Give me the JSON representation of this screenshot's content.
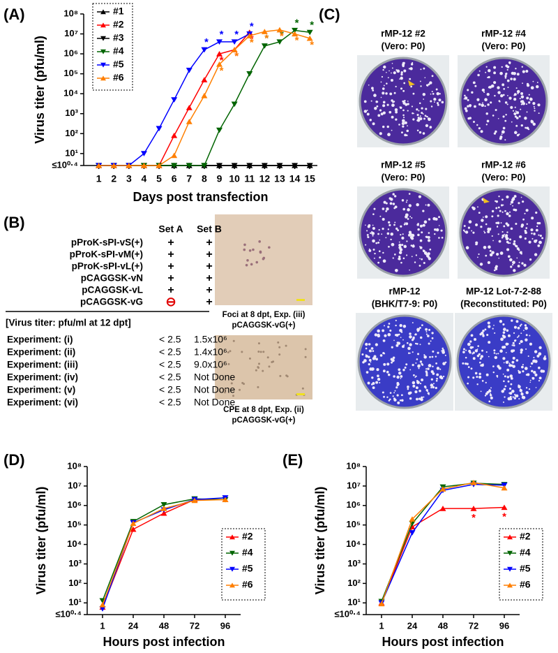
{
  "chart_data": [
    {
      "type": "line",
      "label": "(A)",
      "x_label": "Days post transfection",
      "y_label": "Virus titer (pfu/ml)",
      "log_y": true,
      "legend": "upper left",
      "annotation_text": "*",
      "x": [
        1,
        2,
        3,
        4,
        5,
        6,
        7,
        8,
        9,
        10,
        11,
        12,
        13,
        14,
        15
      ],
      "xlim": [
        0,
        15.5
      ],
      "xticks": [
        1,
        2,
        3,
        4,
        5,
        6,
        7,
        8,
        9,
        10,
        11,
        12,
        13,
        14,
        15
      ],
      "ylim": [
        2.5119,
        100000000
      ],
      "yticks": [
        {
          "value": 2.5119,
          "label": "≤10⁰·⁴"
        },
        {
          "value": 10,
          "label": "10¹"
        },
        {
          "value": 100,
          "label": "10²"
        },
        {
          "value": 1000,
          "label": "10³"
        },
        {
          "value": 10000,
          "label": "10⁴"
        },
        {
          "value": 100000,
          "label": "10⁵"
        },
        {
          "value": 1000000,
          "label": "10⁶"
        },
        {
          "value": 10000000,
          "label": "10⁷"
        },
        {
          "value": 100000000,
          "label": "10⁸"
        }
      ],
      "series": [
        {
          "name": "#1",
          "color": "#000000",
          "marker": "up",
          "values": [
            2.5119,
            2.5119,
            2.5119,
            2.5119,
            2.5119,
            2.5119,
            2.5119,
            2.5119,
            2.5119,
            2.5119,
            2.5119,
            2.5119,
            2.5119,
            2.5119,
            2.5119
          ],
          "asterisk_x": []
        },
        {
          "name": "#2",
          "color": "#ff0000",
          "marker": "up",
          "values": [
            2.5119,
            2.5119,
            2.5119,
            2.5119,
            2.5119,
            80,
            2000,
            50000,
            1000000,
            1600000,
            12000000,
            null,
            null,
            null,
            null
          ],
          "asterisk_x": [
            9,
            10,
            11
          ]
        },
        {
          "name": "#3",
          "color": "#000000",
          "marker": "down",
          "values": [
            2.5119,
            2.5119,
            2.5119,
            2.5119,
            2.5119,
            2.5119,
            2.5119,
            2.5119,
            2.5119,
            2.5119,
            2.5119,
            2.5119,
            2.5119,
            2.5119,
            2.5119
          ],
          "asterisk_x": []
        },
        {
          "name": "#4",
          "color": "#006400",
          "marker": "down",
          "values": [
            2.5119,
            2.5119,
            2.5119,
            2.5119,
            2.5119,
            2.5119,
            2.5119,
            2.5119,
            150,
            3000,
            100000,
            2500000,
            4000000,
            15000000,
            12000000
          ],
          "asterisk_x": [
            12,
            13,
            14,
            15
          ]
        },
        {
          "name": "#5",
          "color": "#0000ff",
          "marker": "down",
          "values": [
            2.5119,
            2.5119,
            2.5119,
            10,
            180,
            5000,
            150000,
            1600000,
            4000000,
            4000000,
            10000000,
            null,
            null,
            null,
            null
          ],
          "asterisk_x": [
            8,
            9,
            10,
            11
          ]
        },
        {
          "name": "#6",
          "color": "#ff7f00",
          "marker": "up",
          "values": [
            2.5119,
            2.5119,
            2.5119,
            2.5119,
            2.5119,
            8,
            400,
            8000,
            300000,
            1600000,
            8000000,
            13000000,
            16000000,
            10000000,
            6000000
          ],
          "asterisk_x": [
            9,
            10,
            11,
            12,
            13,
            14,
            15
          ]
        }
      ]
    },
    {
      "type": "line",
      "label": "(D)",
      "x_label": "Hours post infection",
      "y_label": "Virus titer (pfu/ml)",
      "log_y": true,
      "legend": "lower right",
      "annotation_text": "*",
      "categories": [
        "1",
        "24",
        "48",
        "72",
        "96"
      ],
      "ylim": [
        2.5119,
        100000000
      ],
      "yticks": [
        {
          "value": 2.5119,
          "label": "≤10⁰·⁴"
        },
        {
          "value": 10,
          "label": "10¹"
        },
        {
          "value": 100,
          "label": "10²"
        },
        {
          "value": 1000,
          "label": "10³"
        },
        {
          "value": 10000,
          "label": "10⁴"
        },
        {
          "value": 100000,
          "label": "10⁵"
        },
        {
          "value": 1000000,
          "label": "10⁶"
        },
        {
          "value": 10000000,
          "label": "10⁷"
        },
        {
          "value": 100000000,
          "label": "10⁸"
        }
      ],
      "series": [
        {
          "name": "#2",
          "color": "#ff0000",
          "marker": "up",
          "values": [
            6,
            60000,
            400000,
            2000000,
            2000000
          ],
          "asterisk_x": []
        },
        {
          "name": "#4",
          "color": "#006400",
          "marker": "down",
          "values": [
            13,
            150000,
            1100000,
            2200000,
            2000000
          ],
          "asterisk_x": []
        },
        {
          "name": "#5",
          "color": "#0000ff",
          "marker": "down",
          "values": [
            5,
            130000,
            600000,
            2000000,
            2500000
          ],
          "asterisk_x": []
        },
        {
          "name": "#6",
          "color": "#ff7f00",
          "marker": "up",
          "values": [
            8,
            120000,
            700000,
            1800000,
            2000000
          ],
          "asterisk_x": []
        }
      ]
    },
    {
      "type": "line",
      "label": "(E)",
      "x_label": "Hours post infection",
      "y_label": "Virus titer (pfu/ml)",
      "log_y": true,
      "legend": "lower right",
      "annotation_text": "*",
      "categories": [
        "1",
        "24",
        "48",
        "72",
        "96"
      ],
      "ylim": [
        2.5119,
        100000000
      ],
      "yticks": [
        {
          "value": 2.5119,
          "label": "≤10⁰·⁴"
        },
        {
          "value": 10,
          "label": "10¹"
        },
        {
          "value": 100,
          "label": "10²"
        },
        {
          "value": 1000,
          "label": "10³"
        },
        {
          "value": 10000,
          "label": "10⁴"
        },
        {
          "value": 100000,
          "label": "10⁵"
        },
        {
          "value": 1000000,
          "label": "10⁶"
        },
        {
          "value": 10000000,
          "label": "10⁷"
        },
        {
          "value": 100000000,
          "label": "10⁸"
        }
      ],
      "series": [
        {
          "name": "#2",
          "color": "#ff0000",
          "marker": "up",
          "values": [
            10,
            80000,
            700000,
            700000,
            800000
          ],
          "asterisk_x": [
            "72",
            "96"
          ]
        },
        {
          "name": "#4",
          "color": "#006400",
          "marker": "down",
          "values": [
            12,
            120000,
            9000000,
            14000000,
            12000000
          ],
          "asterisk_x": []
        },
        {
          "name": "#5",
          "color": "#0000ff",
          "marker": "down",
          "values": [
            10,
            40000,
            6000000,
            12000000,
            11000000
          ],
          "asterisk_x": []
        },
        {
          "name": "#6",
          "color": "#ff7f00",
          "marker": "up",
          "values": [
            9,
            200000,
            7000000,
            15000000,
            8000000
          ],
          "asterisk_x": []
        }
      ]
    }
  ],
  "panel_b": {
    "label": "(B)",
    "columns": [
      "Set A",
      "Set B"
    ],
    "plasmids": [
      {
        "name": "pProK-sPI-vS(+)",
        "set_a": "+",
        "set_b": "+"
      },
      {
        "name": "pProK-sPI-vM(+)",
        "set_a": "+",
        "set_b": "+"
      },
      {
        "name": "pProK-sPI-vL(+)",
        "set_a": "+",
        "set_b": "+"
      },
      {
        "name": "pCAGGSK-vN",
        "set_a": "+",
        "set_b": "+"
      },
      {
        "name": "pCAGGSK-vL",
        "set_a": "+",
        "set_b": "+"
      },
      {
        "name": "pCAGGSK-vG",
        "set_a": "⊖",
        "set_b": "+"
      }
    ],
    "titer_heading": "[Virus titer: pfu/ml at 12 dpt]",
    "experiments": [
      {
        "name": "Experiment: (i)",
        "set_a": "< 2.5",
        "set_b": "1.5x10⁶"
      },
      {
        "name": "Experiment: (ii)",
        "set_a": "< 2.5",
        "set_b": "1.4x10⁶"
      },
      {
        "name": "Experiment: (iii)",
        "set_a": "< 2.5",
        "set_b": "9.0x10⁶"
      },
      {
        "name": "Experiment: (iv)",
        "set_a": "< 2.5",
        "set_b": "Not Done"
      },
      {
        "name": "Experiment: (v)",
        "set_a": "< 2.5",
        "set_b": "Not Done"
      },
      {
        "name": "Experiment: (vi)",
        "set_a": "< 2.5",
        "set_b": "Not Done"
      }
    ],
    "images": [
      {
        "caption": [
          "Foci at 8 dpt, Exp. (iii)",
          "pCAGGSK-vG(+)"
        ]
      },
      {
        "caption": [
          "CPE at 8 dpt, Exp. (ii)",
          "pCAGGSK-vG(+)"
        ]
      }
    ]
  },
  "panel_c": {
    "label": "(C)",
    "plates": [
      {
        "caption": [
          "rMP-12 #2",
          "(Vero: P0)"
        ]
      },
      {
        "caption": [
          "rMP-12 #4",
          "(Vero: P0)"
        ]
      },
      {
        "caption": [
          "rMP-12 #5",
          "(Vero: P0)"
        ]
      },
      {
        "caption": [
          "rMP-12 #6",
          "(Vero: P0)"
        ]
      },
      {
        "caption": [
          "rMP-12",
          "(BHK/T7-9: P0)"
        ]
      },
      {
        "caption": [
          "MP-12 Lot-7-2-88",
          "(Reconstituted: P0)"
        ]
      }
    ]
  }
}
